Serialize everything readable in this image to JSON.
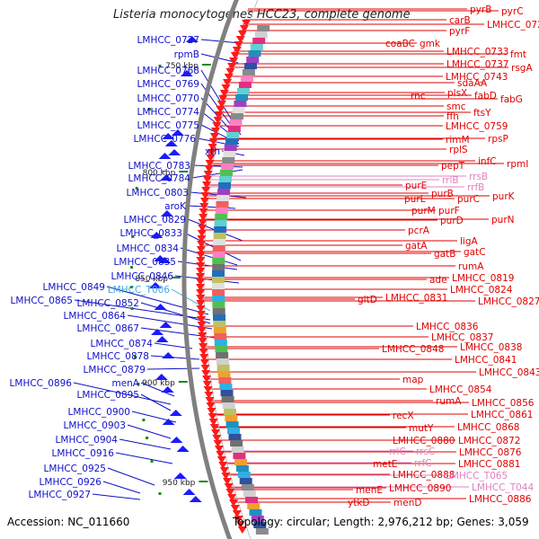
{
  "title": "Listeria monocytogenes HCC23, complete genome",
  "footer": {
    "accession": "Accession: NC_011660",
    "summary": "Topology: circular; Length: 2,976,212 bp; Genes: 3,059"
  },
  "colors": {
    "left_label": "#1010c8",
    "right_label": "#e00000",
    "pseudo_label": "#e080c0",
    "highlight_label": "#3fa9d9",
    "backbone": "#808080",
    "arrow_red": "#ff1a1a",
    "arrow_blue": "#1a1aff"
  },
  "ticks": [
    "750 kbp",
    "800 kbp",
    "850 kbp",
    "900 kbp",
    "950 kbp"
  ],
  "left_labels": [
    "LMHCC_0727",
    "rpmB",
    "LMHCC_0768",
    "LMHCC_0769",
    "LMHCC_0770",
    "LMHCC_0774",
    "LMHCC_0775",
    "LMHCC_0776",
    "xth",
    "LMHCC_0783",
    "LMHCC_0784",
    "LMHCC_0803",
    "aroK",
    "LMHCC_0829",
    "LMHCC_0833",
    "LMHCC_0834",
    "LMHCC_0835",
    "LMHCC_0846",
    "LMHCC_0849",
    "LMHCC_T006",
    "LMHCC_0865",
    "LMHCC_0852",
    "LMHCC_0864",
    "LMHCC_0867",
    "LMHCC_0874",
    "LMHCC_0878",
    "LMHCC_0879",
    "LMHCC_0896",
    "menA",
    "LMHCC_0895",
    "LMHCC_0900",
    "LMHCC_0903",
    "LMHCC_0904",
    "LMHCC_0916",
    "LMHCC_0925",
    "LMHCC_0926",
    "LMHCC_0927"
  ],
  "right_labels": [
    "pyrB",
    "pyrC",
    "carB",
    "LMHCC_0722",
    "pyrF",
    "coaBC",
    "gmk",
    "LMHCC_0733",
    "fmt",
    "LMHCC_0737",
    "rsgA",
    "LMHCC_0743",
    "sdaAA",
    "rnc",
    "plsX",
    "fabD",
    "fabG",
    "smc",
    "ffh",
    "ftsY",
    "LMHCC_0759",
    "rimM",
    "rpsP",
    "rplS",
    "infC",
    "rpmI",
    "pepT",
    "rrlB",
    "rrsB",
    "rrfB",
    "purE",
    "purK",
    "purL",
    "purB",
    "purC",
    "purM",
    "purF",
    "purD",
    "purN",
    "pcrA",
    "ligA",
    "gatA",
    "gatB",
    "gatC",
    "rumA",
    "ade",
    "LMHCC_0819",
    "LMHCC_0824",
    "LMHCC_0827",
    "gltD",
    "LMHCC_0831",
    "LMHCC_0836",
    "LMHCC_0837",
    "LMHCC_0838",
    "LMHCC_0848",
    "LMHCC_0841",
    "LMHCC_0843",
    "map",
    "LMHCC_0854",
    "rumA",
    "LMHCC_0856",
    "LMHCC_0861",
    "recX",
    "mutY",
    "LMHCC_0868",
    "LMHCC_0880",
    "LMHCC_0872",
    "rrlC",
    "rrsC",
    "LMHCC_0876",
    "metE",
    "rrfC",
    "LMHCC_0881",
    "LMHCC_0888",
    "LMHCC_T065",
    "LMHCC_T044",
    "menE",
    "LMHCC_0890",
    "LMHCC_0886",
    "ytkD",
    "menD"
  ]
}
